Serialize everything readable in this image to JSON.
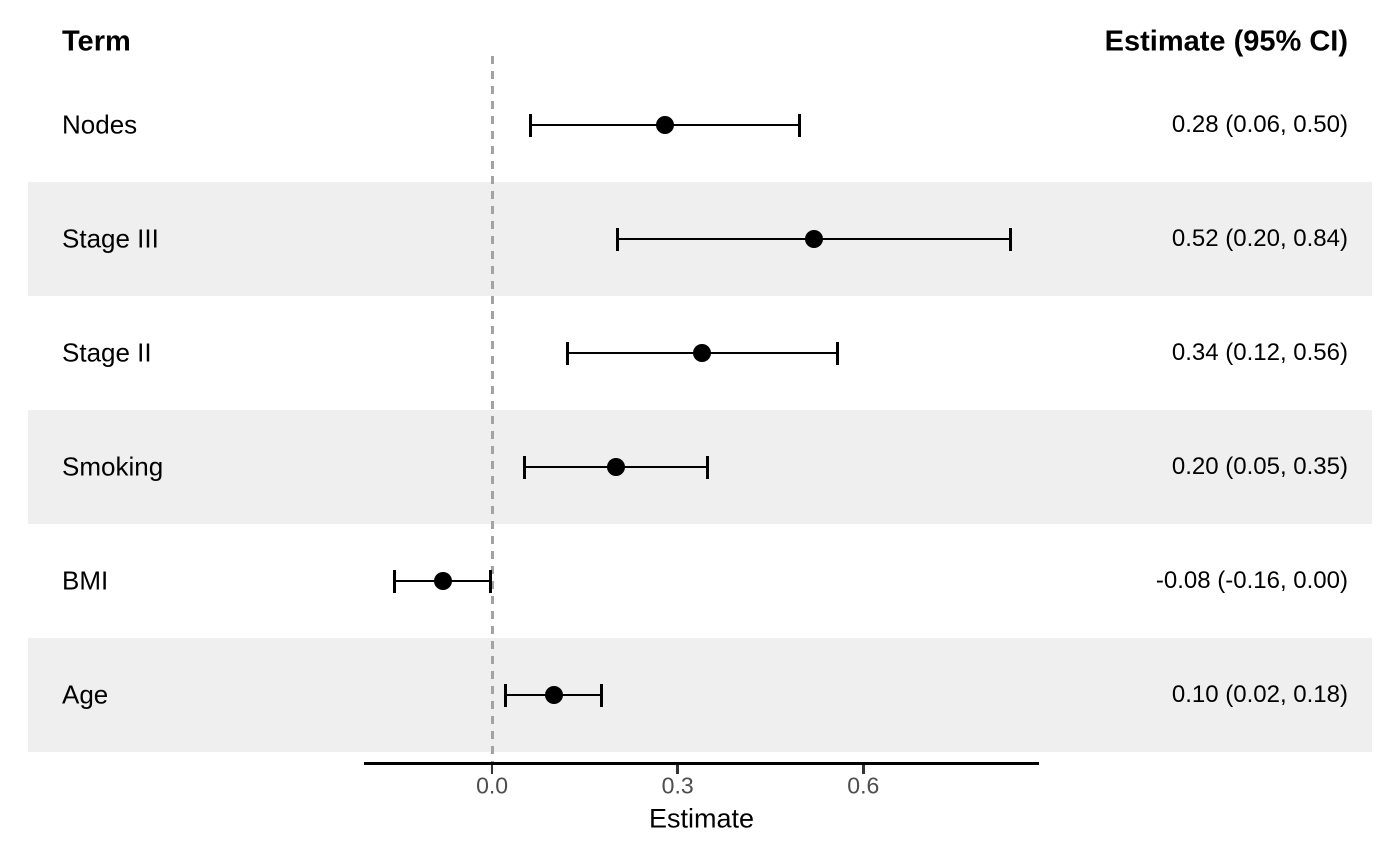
{
  "chart_data": {
    "type": "scatter",
    "subtype": "forest-plot",
    "columns": {
      "left_header": "Term",
      "right_header": "Estimate (95% CI)"
    },
    "xlabel": "Estimate",
    "xlim": [
      -0.207,
      0.884
    ],
    "x_ticks": [
      {
        "value": 0.0,
        "label": "0.0"
      },
      {
        "value": 0.3,
        "label": "0.3"
      },
      {
        "value": 0.6,
        "label": "0.6"
      }
    ],
    "reference_line": 0.0,
    "grid": false,
    "legend": false,
    "rows": [
      {
        "term": "Nodes",
        "estimate": 0.28,
        "ci_low": 0.06,
        "ci_high": 0.5,
        "display": "0.28 (0.06, 0.50)",
        "striped": false
      },
      {
        "term": "Stage III",
        "estimate": 0.52,
        "ci_low": 0.2,
        "ci_high": 0.84,
        "display": "0.52 (0.20, 0.84)",
        "striped": true
      },
      {
        "term": "Stage II",
        "estimate": 0.34,
        "ci_low": 0.12,
        "ci_high": 0.56,
        "display": "0.34 (0.12, 0.56)",
        "striped": false
      },
      {
        "term": "Smoking",
        "estimate": 0.2,
        "ci_low": 0.05,
        "ci_high": 0.35,
        "display": "0.20 (0.05, 0.35)",
        "striped": true
      },
      {
        "term": "BMI",
        "estimate": -0.08,
        "ci_low": -0.16,
        "ci_high": 0.0,
        "display": "-0.08 (-0.16, 0.00)",
        "striped": false
      },
      {
        "term": "Age",
        "estimate": 0.1,
        "ci_low": 0.02,
        "ci_high": 0.18,
        "display": "0.10 (0.02, 0.18)",
        "striped": true
      }
    ]
  },
  "colors": {
    "background": "#FFFFFF",
    "stripe": "#EFEFEF",
    "reference_line": "#A3A3A3",
    "marker": "#000000",
    "error_bar": "#000000",
    "axis_line": "#000000",
    "tick_mark": "#333333",
    "tick_label": "#4D4D4D",
    "text": "#000000"
  }
}
